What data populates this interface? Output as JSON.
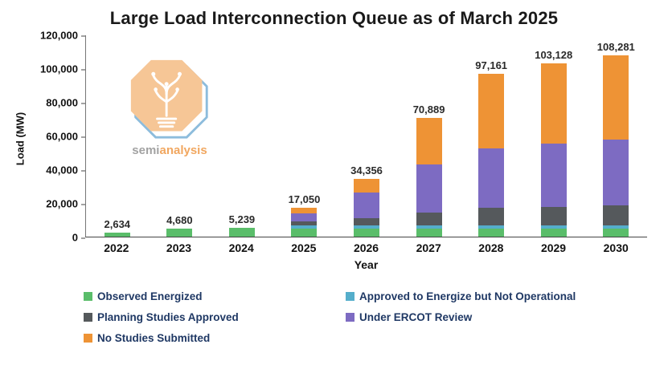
{
  "title": "Large Load Interconnection Queue as of March 2025",
  "watermark": {
    "semi": "semi",
    "analysis": "analysis"
  },
  "chart_data": {
    "type": "bar",
    "stacked": true,
    "title": "Large Load Interconnection Queue as of March 2025",
    "xlabel": "Year",
    "ylabel": "Load (MW)",
    "ylim": [
      0,
      120000
    ],
    "grid": false,
    "legend_position": "bottom",
    "ytick_labels": [
      "0",
      "20,000",
      "40,000",
      "60,000",
      "80,000",
      "100,000",
      "120,000"
    ],
    "categories": [
      "2022",
      "2023",
      "2024",
      "2025",
      "2026",
      "2027",
      "2028",
      "2029",
      "2030"
    ],
    "totals": [
      2634,
      4680,
      5239,
      17050,
      34356,
      70889,
      97161,
      103128,
      108281
    ],
    "total_labels": [
      "2,634",
      "4,680",
      "5,239",
      "17,050",
      "34,356",
      "70,889",
      "97,161",
      "103,128",
      "108,281"
    ],
    "series": [
      {
        "name": "Observed Energized",
        "color": "#5abd6a",
        "values": [
          2634,
          4680,
          5239,
          5000,
          5000,
          5000,
          5000,
          5000,
          5000
        ]
      },
      {
        "name": "Approved to Energize but Not Operational",
        "color": "#55aecb",
        "values": [
          0,
          0,
          0,
          1500,
          1500,
          1500,
          1500,
          1500,
          1500
        ]
      },
      {
        "name": "Planning Studies Approved",
        "color": "#55595c",
        "values": [
          0,
          0,
          0,
          2550,
          4500,
          8000,
          10500,
          11000,
          12000
        ]
      },
      {
        "name": "Under ERCOT Review",
        "color": "#7d6bc2",
        "values": [
          0,
          0,
          0,
          5000,
          15356,
          28500,
          35500,
          38000,
          39500
        ]
      },
      {
        "name": "No Studies Submitted",
        "color": "#ee9335",
        "values": [
          0,
          0,
          0,
          3000,
          8000,
          27889,
          44661,
          47628,
          50281
        ]
      }
    ]
  }
}
